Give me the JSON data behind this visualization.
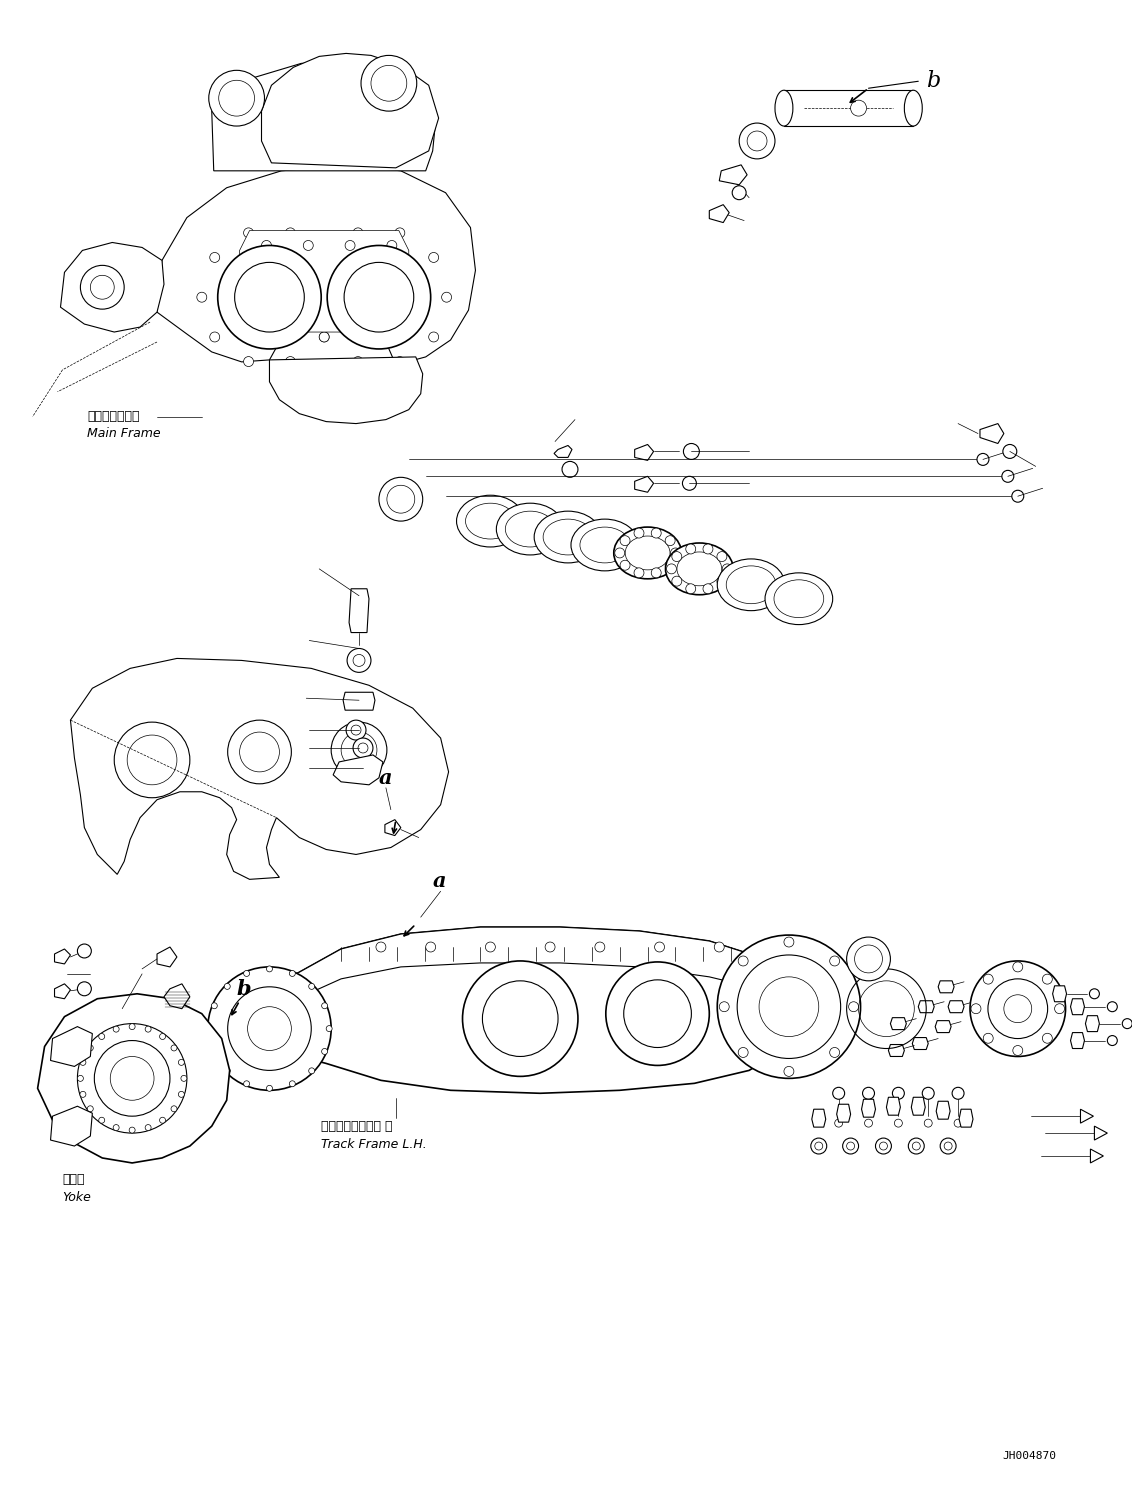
{
  "figure_width": 11.35,
  "figure_height": 14.91,
  "dpi": 100,
  "bg_color": "#ffffff",
  "line_color": "#000000",
  "part_id": "JH004870",
  "labels": {
    "main_frame_jp": "メインフレーム",
    "main_frame_en": "Main Frame",
    "track_frame_jp": "トラックフレーム 左",
    "track_frame_en": "Track Frame L.H.",
    "yoke_jp": "ヨーク",
    "yoke_en": "Yoke",
    "label_a": "a",
    "label_b": "b"
  }
}
